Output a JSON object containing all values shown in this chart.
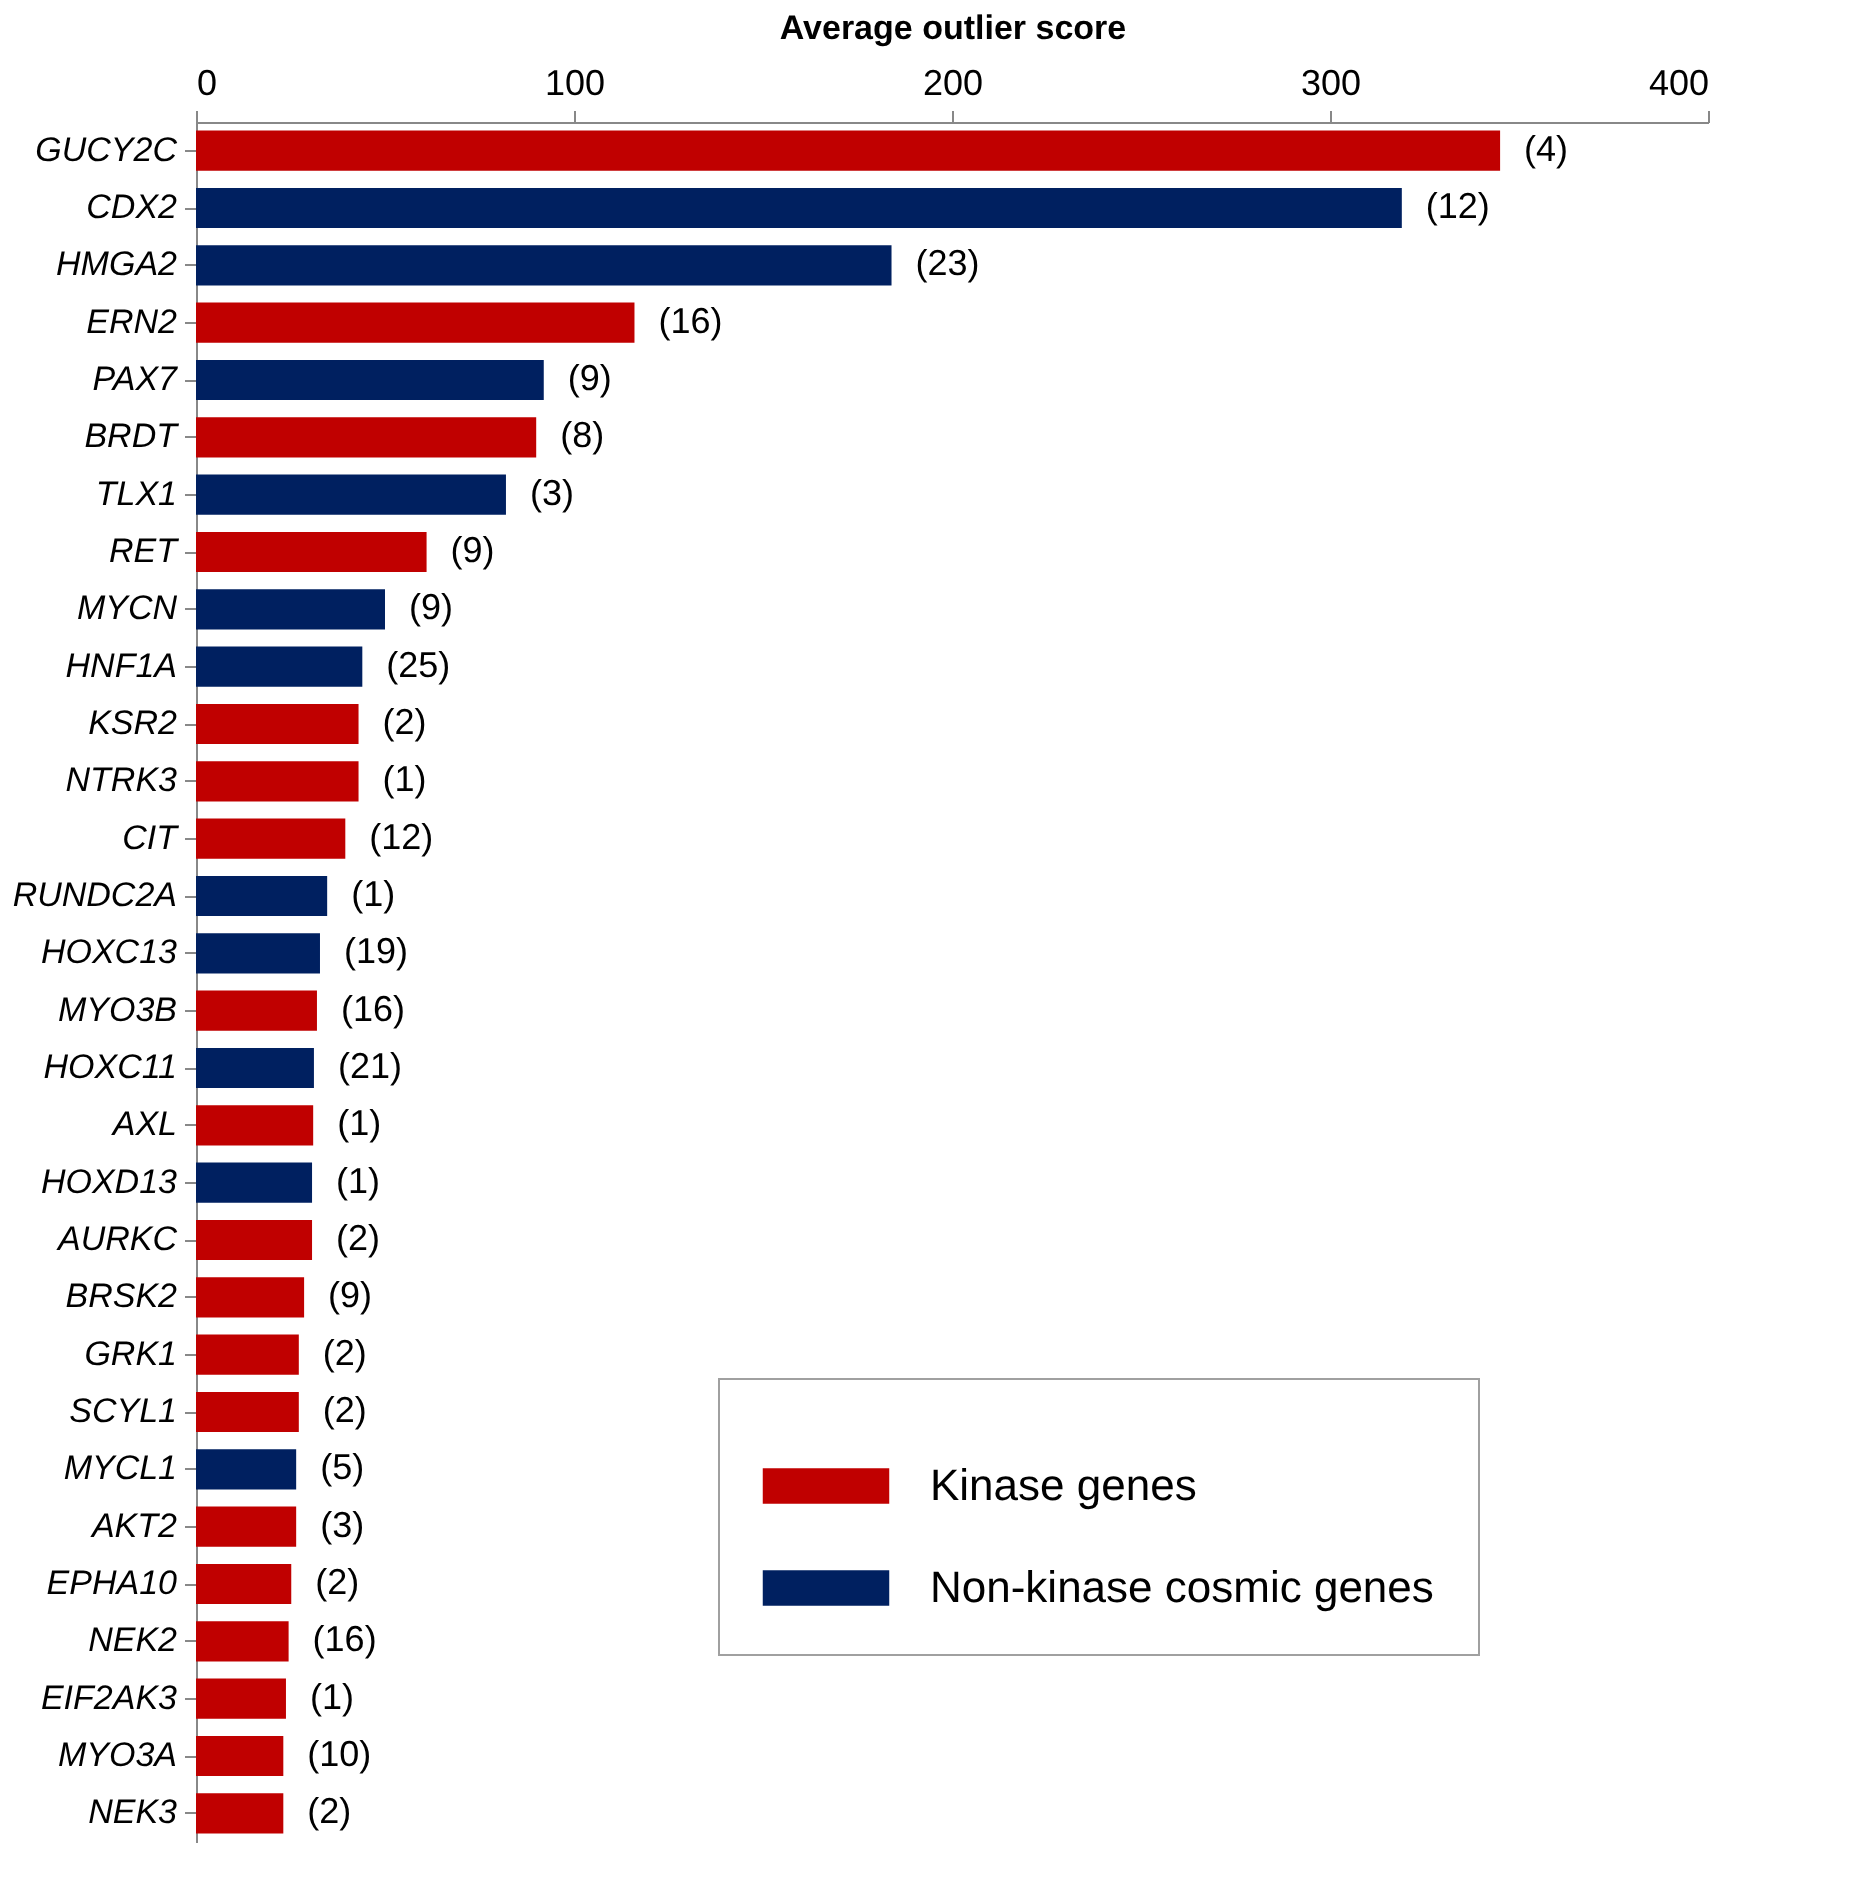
{
  "chart_data": {
    "type": "bar",
    "orientation": "horizontal",
    "xlabel": "Average outlier score",
    "categories": [
      "GUCY2C",
      "CDX2",
      "HMGA2",
      "ERN2",
      "PAX7",
      "BRDT",
      "TLX1",
      "RET",
      "MYCN",
      "HNF1A",
      "KSR2",
      "NTRK3",
      "CIT",
      "RUNDC2A",
      "HOXC13",
      "MYO3B",
      "HOXC11",
      "AXL",
      "HOXD13",
      "AURKC",
      "BRSK2",
      "GRK1",
      "SCYL1",
      "MYCL1",
      "AKT2",
      "EPHA10",
      "NEK2",
      "EIF2AK3",
      "MYO3A",
      "NEK3"
    ],
    "series": [
      {
        "name": "Kinase genes",
        "color": "#c00000",
        "values": [
          345,
          null,
          null,
          116,
          null,
          90,
          null,
          61,
          null,
          null,
          43,
          43,
          39.5,
          null,
          null,
          32,
          null,
          31,
          null,
          30.7,
          28.6,
          27.2,
          27.2,
          null,
          26.5,
          25.2,
          24.5,
          23.8,
          23.1,
          23.1
        ]
      },
      {
        "name": "Non-kinase cosmic genes",
        "color": "#002060",
        "values": [
          null,
          319,
          184,
          null,
          92,
          null,
          82,
          null,
          50,
          44,
          null,
          null,
          null,
          34.7,
          32.8,
          null,
          31.2,
          null,
          30.7,
          null,
          null,
          null,
          null,
          26.5,
          null,
          null,
          null,
          null,
          null,
          null
        ]
      }
    ],
    "annotations": [
      {
        "text": "(4)",
        "x": 345,
        "y": "GUCY2C"
      },
      {
        "text": "(12)",
        "x": 319,
        "y": "CDX2"
      },
      {
        "text": "(23)",
        "x": 184,
        "y": "HMGA2"
      },
      {
        "text": "(16)",
        "x": 116,
        "y": "ERN2"
      },
      {
        "text": "(9)",
        "x": 92,
        "y": "PAX7"
      },
      {
        "text": "(8)",
        "x": 90,
        "y": "BRDT"
      },
      {
        "text": "(3)",
        "x": 82,
        "y": "TLX1"
      },
      {
        "text": "(9)",
        "x": 61,
        "y": "RET"
      },
      {
        "text": "(9)",
        "x": 50,
        "y": "MYCN"
      },
      {
        "text": "(25)",
        "x": 44,
        "y": "HNF1A"
      },
      {
        "text": "(2)",
        "x": 43,
        "y": "KSR2"
      },
      {
        "text": "(1)",
        "x": 43,
        "y": "NTRK3"
      },
      {
        "text": "(12)",
        "x": 39.5,
        "y": "CIT"
      },
      {
        "text": "(1)",
        "x": 34.7,
        "y": "RUNDC2A"
      },
      {
        "text": "(19)",
        "x": 32.8,
        "y": "HOXC13"
      },
      {
        "text": "(16)",
        "x": 32,
        "y": "MYO3B"
      },
      {
        "text": "(21)",
        "x": 31.2,
        "y": "HOXC11"
      },
      {
        "text": "(1)",
        "x": 31,
        "y": "AXL"
      },
      {
        "text": "(1)",
        "x": 30.7,
        "y": "HOXD13"
      },
      {
        "text": "(2)",
        "x": 30.7,
        "y": "AURKC"
      },
      {
        "text": "(9)",
        "x": 28.6,
        "y": "BRSK2"
      },
      {
        "text": "(2)",
        "x": 27.2,
        "y": "GRK1"
      },
      {
        "text": "(2)",
        "x": 27.2,
        "y": "SCYL1"
      },
      {
        "text": "(5)",
        "x": 26.5,
        "y": "MYCL1"
      },
      {
        "text": "(3)",
        "x": 26.5,
        "y": "AKT2"
      },
      {
        "text": "(2)",
        "x": 25.2,
        "y": "EPHA10"
      },
      {
        "text": "(16)",
        "x": 24.5,
        "y": "NEK2"
      },
      {
        "text": "(1)",
        "x": 23.8,
        "y": "EIF2AK3"
      },
      {
        "text": "(10)",
        "x": 23.1,
        "y": "MYO3A"
      },
      {
        "text": "(2)",
        "x": 23.1,
        "y": "NEK3"
      }
    ],
    "xlim": [
      0,
      400
    ],
    "xticks": [
      0,
      100,
      200,
      300,
      400
    ],
    "grid": false,
    "legend": "bottom right"
  }
}
